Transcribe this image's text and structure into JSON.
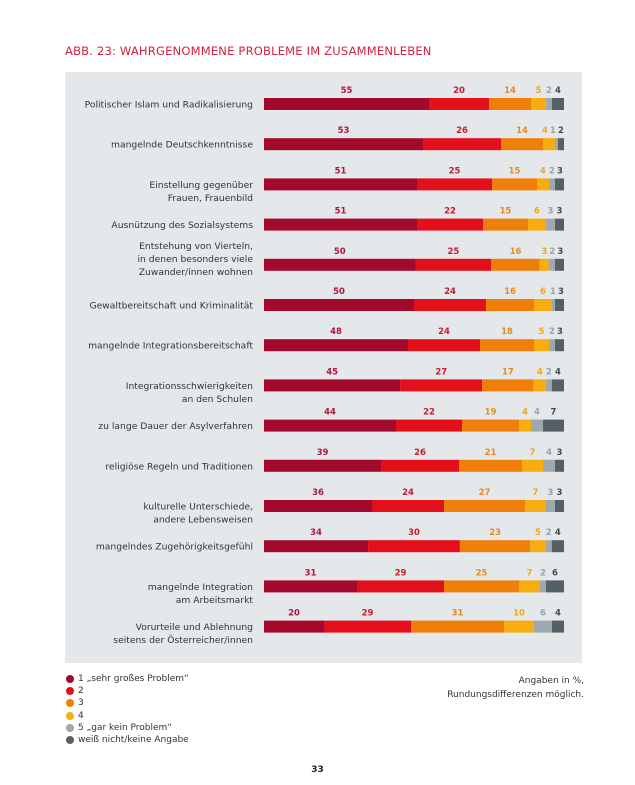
{
  "page": {
    "number": "33"
  },
  "note": {
    "line1": "Angaben in %,",
    "line2": "Rundungsdifferenzen möglich."
  },
  "chart_data": {
    "type": "bar",
    "orientation": "horizontal",
    "stacked": true,
    "title": "ABB. 23: WAHRGENOMMENE PROBLEME IM ZUSAMMENLEBEN",
    "xlabel": "",
    "ylabel": "",
    "xlim": [
      0,
      100
    ],
    "grid": false,
    "legend_position": "bottom-left",
    "unit_note": "Angaben in %, Rundungsdifferenzen möglich.",
    "categories": [
      [
        "Politischer Islam und Radikalisierung"
      ],
      [
        "mangelnde Deutschkenntnisse"
      ],
      [
        "Einstellung gegenüber",
        "Frauen, Frauenbild"
      ],
      [
        "Ausnützung des Sozialsystems"
      ],
      [
        "Entstehung von Vierteln,",
        "in denen besonders viele",
        "Zuwander/innen wohnen"
      ],
      [
        "Gewaltbereitschaft und Kriminalität"
      ],
      [
        "mangelnde Integrationsbereitschaft"
      ],
      [
        "Integrationsschwierigkeiten",
        "an den Schulen"
      ],
      [
        "zu lange Dauer der Asylverfahren"
      ],
      [
        "religiöse Regeln und Traditionen"
      ],
      [
        "kulturelle Unterschiede,",
        "andere Lebensweisen"
      ],
      [
        "mangelndes Zugehörigkeitsgefühl"
      ],
      [
        "mangelnde Integration",
        "am Arbeitsmarkt"
      ],
      [
        "Vorurteile und Ablehnung",
        "seitens der Österreicher/innen"
      ]
    ],
    "series": [
      {
        "name": "1 „sehr großes Problem“",
        "color": "#a3092c",
        "label_color": "#b0153a",
        "values": [
          55,
          53,
          51,
          51,
          50,
          50,
          48,
          45,
          44,
          39,
          36,
          34,
          31,
          20
        ]
      },
      {
        "name": "2",
        "color": "#e3101c",
        "label_color": "#c81a30",
        "values": [
          20,
          26,
          25,
          22,
          25,
          24,
          24,
          27,
          22,
          26,
          24,
          30,
          29,
          29
        ]
      },
      {
        "name": "3",
        "color": "#f07f0a",
        "label_color": "#e58a1f",
        "values": [
          14,
          14,
          15,
          15,
          16,
          16,
          18,
          17,
          19,
          21,
          27,
          23,
          25,
          31
        ]
      },
      {
        "name": "4",
        "color": "#f7ad0f",
        "label_color": "#f0a81c",
        "values": [
          5,
          4,
          4,
          6,
          3,
          6,
          5,
          4,
          4,
          7,
          7,
          5,
          7,
          10
        ]
      },
      {
        "name": "5 „gar kein Problem“",
        "color": "#9ea8ae",
        "label_color": "#9aa3a9",
        "values": [
          2,
          1,
          2,
          3,
          2,
          1,
          2,
          2,
          4,
          4,
          3,
          2,
          2,
          6
        ]
      },
      {
        "name": "weiß nicht/keine Angabe",
        "color": "#555f66",
        "label_color": "#444c52",
        "values": [
          4,
          2,
          3,
          3,
          3,
          3,
          3,
          4,
          7,
          3,
          3,
          4,
          6,
          4
        ]
      }
    ]
  }
}
